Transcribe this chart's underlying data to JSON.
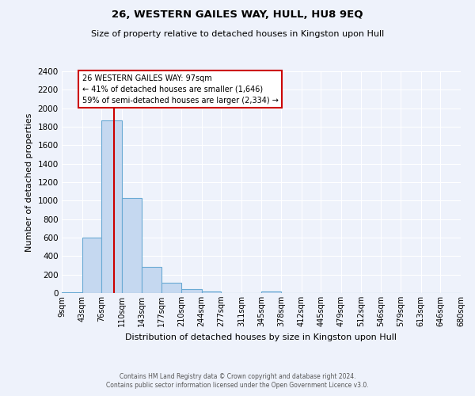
{
  "title1": "26, WESTERN GAILES WAY, HULL, HU8 9EQ",
  "title2": "Size of property relative to detached houses in Kingston upon Hull",
  "xlabel": "Distribution of detached houses by size in Kingston upon Hull",
  "ylabel": "Number of detached properties",
  "bin_labels": [
    "9sqm",
    "43sqm",
    "76sqm",
    "110sqm",
    "143sqm",
    "177sqm",
    "210sqm",
    "244sqm",
    "277sqm",
    "311sqm",
    "345sqm",
    "378sqm",
    "412sqm",
    "445sqm",
    "479sqm",
    "512sqm",
    "546sqm",
    "579sqm",
    "613sqm",
    "646sqm",
    "680sqm"
  ],
  "bar_values": [
    10,
    600,
    1870,
    1030,
    285,
    115,
    45,
    18,
    0,
    0,
    18,
    0,
    0,
    0,
    0,
    0,
    0,
    0,
    0,
    0
  ],
  "bar_color": "#c5d8f0",
  "bar_edgecolor": "#6aaad4",
  "vline_x": 97,
  "vline_color": "#cc0000",
  "annotation_text": "26 WESTERN GAILES WAY: 97sqm\n← 41% of detached houses are smaller (1,646)\n59% of semi-detached houses are larger (2,334) →",
  "annotation_box_color": "#ffffff",
  "annotation_box_edgecolor": "#cc0000",
  "ylim": [
    0,
    2400
  ],
  "yticks": [
    0,
    200,
    400,
    600,
    800,
    1000,
    1200,
    1400,
    1600,
    1800,
    2000,
    2200,
    2400
  ],
  "bin_edges": [
    9,
    43,
    76,
    110,
    143,
    177,
    210,
    244,
    277,
    311,
    345,
    378,
    412,
    445,
    479,
    512,
    546,
    579,
    613,
    646,
    680
  ],
  "bg_color": "#eef2fb",
  "grid_color": "#ffffff",
  "footer1": "Contains HM Land Registry data © Crown copyright and database right 2024.",
  "footer2": "Contains public sector information licensed under the Open Government Licence v3.0."
}
